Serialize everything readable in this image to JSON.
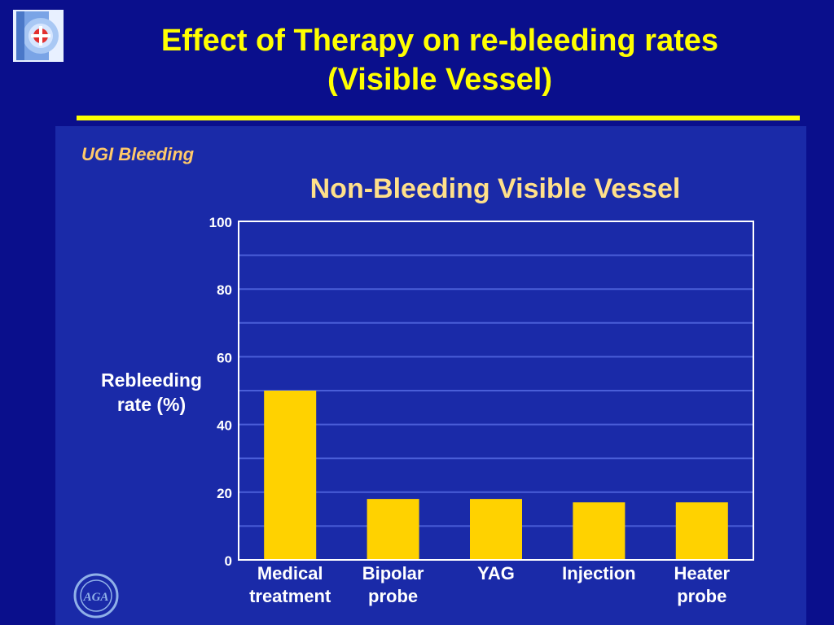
{
  "slide": {
    "title_line1": "Effect of Therapy on re-bleeding rates",
    "title_line2": "(Visible Vessel)"
  },
  "logo": {
    "icon": "p-logo-icon"
  },
  "footer_logo": {
    "icon": "aga-seal-icon",
    "text": "AGA"
  },
  "colors": {
    "background": "#0a0f8c",
    "panel": "#1a2aa8",
    "title": "#ffff00",
    "chart_title": "#ffe08a",
    "bar": "#ffd200",
    "grid": "#4a5ed8",
    "axis": "#ffffff",
    "section_label": "#ffc96a"
  },
  "chart_data": {
    "type": "bar",
    "section_label": "UGI Bleeding",
    "title": "Non-Bleeding Visible Vessel",
    "ylabel_line1": "Rebleeding",
    "ylabel_line2": "rate (%)",
    "xlabel": "",
    "ylim": [
      0,
      100
    ],
    "yticks": [
      0,
      20,
      40,
      60,
      80,
      100
    ],
    "grid": true,
    "categories": [
      [
        "Medical",
        "treatment"
      ],
      [
        "Bipolar",
        "probe"
      ],
      [
        "YAG"
      ],
      [
        "Injection"
      ],
      [
        "Heater",
        "probe"
      ]
    ],
    "values": [
      50,
      18,
      18,
      17,
      17
    ]
  }
}
